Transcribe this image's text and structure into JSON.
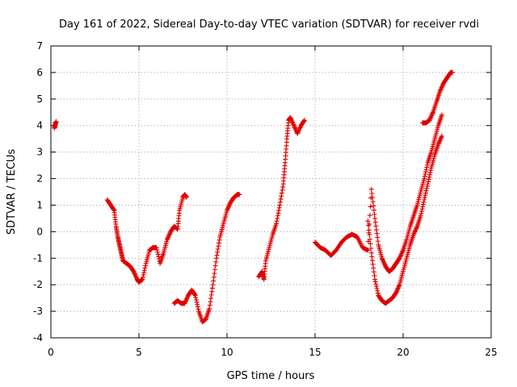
{
  "chart_data": {
    "type": "scatter",
    "title": "Day 161 of 2022, Sidereal Day-to-day VTEC variation (SDTVAR) for receiver rvdi",
    "xlabel": "GPS time / hours",
    "ylabel": "SDTVAR / TECUs",
    "xlim": [
      0,
      25
    ],
    "ylim": [
      -4,
      7
    ],
    "xticks": [
      "0",
      "5",
      "10",
      "15",
      "20",
      "25"
    ],
    "yticks": [
      "-4",
      "-3",
      "-2",
      "-1",
      "0",
      "1",
      "2",
      "3",
      "4",
      "5",
      "6",
      "7"
    ],
    "grid": true,
    "marker": "+",
    "color": "#e00000",
    "segments": [
      {
        "x": [
          0.2,
          0.25,
          0.3
        ],
        "y": [
          3.9,
          4.05,
          4.15
        ]
      },
      {
        "x": [
          3.2,
          3.4,
          3.6,
          3.7,
          3.8,
          3.9,
          4.0,
          4.1,
          4.3,
          4.5,
          4.7,
          4.9,
          5.0,
          5.2,
          5.4,
          5.6,
          5.8,
          6.0,
          6.2,
          6.4,
          6.6,
          6.8,
          7.0,
          7.2,
          7.3,
          7.5,
          7.6,
          7.7
        ],
        "y": [
          1.2,
          1.0,
          0.8,
          0.2,
          -0.2,
          -0.5,
          -0.8,
          -1.1,
          -1.2,
          -1.3,
          -1.5,
          -1.8,
          -1.9,
          -1.8,
          -1.2,
          -0.7,
          -0.6,
          -0.6,
          -1.2,
          -0.8,
          -0.3,
          0.0,
          0.2,
          0.1,
          0.8,
          1.3,
          1.4,
          1.3
        ]
      },
      {
        "x": [
          7.0,
          7.2,
          7.4,
          7.6,
          7.8,
          8.0,
          8.2,
          8.4,
          8.6,
          8.8,
          9.0,
          9.2,
          9.4,
          9.6,
          9.8,
          10.0,
          10.2,
          10.4,
          10.6,
          10.7
        ],
        "y": [
          -2.7,
          -2.6,
          -2.7,
          -2.7,
          -2.4,
          -2.2,
          -2.4,
          -3.0,
          -3.4,
          -3.3,
          -2.9,
          -2.0,
          -1.0,
          -0.2,
          0.3,
          0.8,
          1.1,
          1.3,
          1.4,
          1.4
        ]
      },
      {
        "x": [
          11.8,
          12.0,
          12.1,
          12.2,
          12.4,
          12.6,
          12.8,
          13.0,
          13.2,
          13.3,
          13.4,
          13.5,
          13.6,
          13.8,
          14.0,
          14.2,
          14.4
        ],
        "y": [
          -1.7,
          -1.5,
          -1.8,
          -1.1,
          -0.6,
          -0.1,
          0.3,
          1.0,
          1.8,
          2.6,
          3.5,
          4.2,
          4.3,
          4.0,
          3.7,
          4.0,
          4.2
        ]
      },
      {
        "x": [
          15.0,
          15.3,
          15.6,
          15.9,
          16.2,
          16.5,
          16.8,
          17.1,
          17.4,
          17.7,
          18.0,
          18.2,
          18.4,
          18.6,
          18.8,
          19.0,
          19.2,
          19.4,
          19.6,
          19.8,
          20.0,
          20.2,
          20.4,
          20.6,
          20.8,
          21.0,
          21.2,
          21.4,
          21.6,
          21.8,
          22.0,
          22.2
        ],
        "y": [
          -0.4,
          -0.6,
          -0.7,
          -0.9,
          -0.7,
          -0.4,
          -0.2,
          -0.1,
          -0.2,
          -0.6,
          -0.7,
          1.6,
          0.5,
          -0.5,
          -1.0,
          -1.3,
          -1.5,
          -1.4,
          -1.2,
          -1.0,
          -0.7,
          -0.3,
          0.2,
          0.6,
          1.0,
          1.5,
          2.0,
          2.6,
          3.0,
          3.5,
          4.0,
          4.4
        ]
      },
      {
        "x": [
          18.0,
          18.2,
          18.4,
          18.6,
          18.8,
          19.0,
          19.2,
          19.4,
          19.6,
          19.8,
          20.0,
          20.2,
          20.4,
          20.6,
          20.8,
          21.0,
          21.2,
          21.4,
          21.6,
          21.8,
          22.0,
          22.2
        ],
        "y": [
          0.4,
          -0.8,
          -1.8,
          -2.4,
          -2.6,
          -2.7,
          -2.6,
          -2.5,
          -2.3,
          -2.0,
          -1.5,
          -1.0,
          -0.5,
          -0.1,
          0.2,
          0.6,
          1.2,
          1.8,
          2.4,
          2.9,
          3.3,
          3.6
        ]
      },
      {
        "x": [
          21.1,
          21.3,
          21.5,
          21.7,
          21.9,
          22.1,
          22.3,
          22.5,
          22.7,
          22.8
        ],
        "y": [
          4.1,
          4.1,
          4.2,
          4.5,
          4.9,
          5.3,
          5.6,
          5.8,
          6.0,
          6.0
        ]
      }
    ]
  }
}
